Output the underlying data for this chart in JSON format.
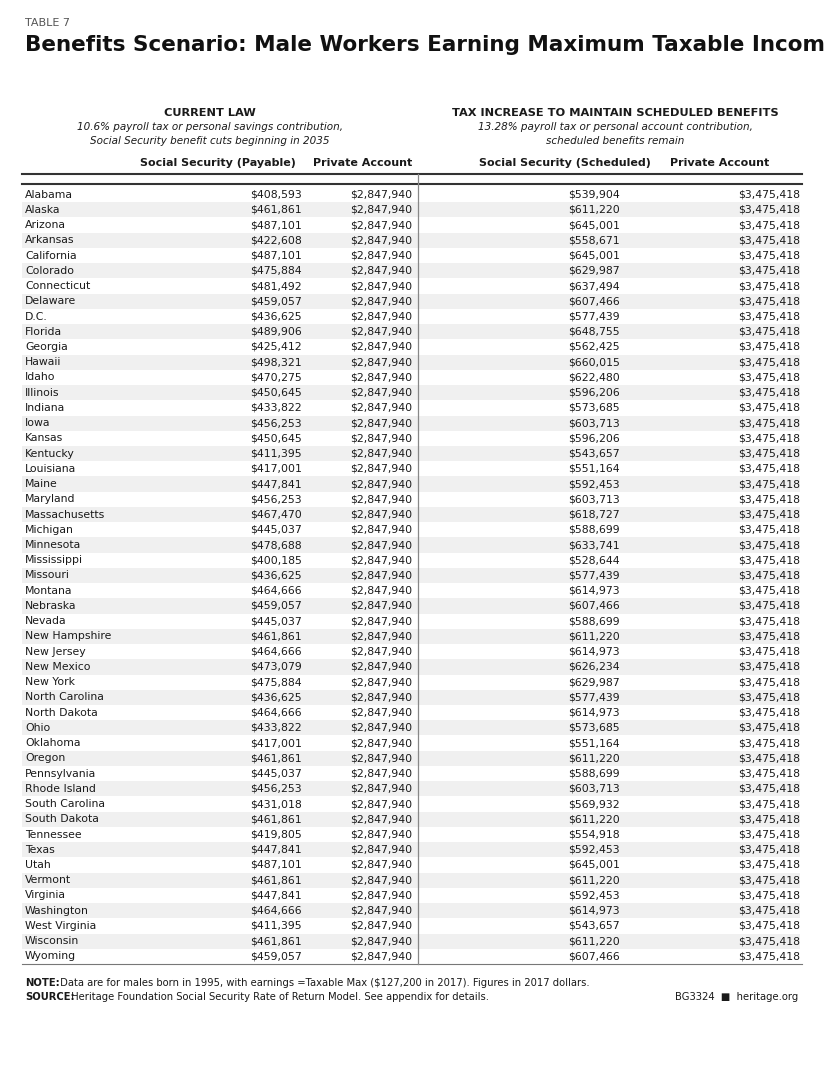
{
  "table_label": "TABLE 7",
  "title": "Benefits Scenario: Male Workers Earning Maximum Taxable Income",
  "section1_header": "CURRENT LAW",
  "section1_subtext": "10.6% payroll tax or personal savings contribution,\nSocial Security benefit cuts beginning in 2035",
  "section2_header": "TAX INCREASE TO MAINTAIN SCHEDULED BENEFITS",
  "section2_subtext": "13.28% payroll tax or personal account contribution,\nscheduled benefits remain",
  "col1_header": "Social Security (Payable)",
  "col2_header": "Private Account",
  "col3_header": "Social Security (Scheduled)",
  "col4_header": "Private Account",
  "note_bold": "NOTE:",
  "note_rest": " Data are for males born in 1995, with earnings =Taxable Max ($127,200 in 2017). Figures in 2017 dollars.",
  "source_bold": "SOURCE:",
  "source_rest": " Heritage Foundation Social Security Rate of Return Model. See appendix for details.",
  "brand": "BG3324  ■  heritage.org",
  "rows": [
    [
      "Alabama",
      "$408,593",
      "$2,847,940",
      "$539,904",
      "$3,475,418"
    ],
    [
      "Alaska",
      "$461,861",
      "$2,847,940",
      "$611,220",
      "$3,475,418"
    ],
    [
      "Arizona",
      "$487,101",
      "$2,847,940",
      "$645,001",
      "$3,475,418"
    ],
    [
      "Arkansas",
      "$422,608",
      "$2,847,940",
      "$558,671",
      "$3,475,418"
    ],
    [
      "California",
      "$487,101",
      "$2,847,940",
      "$645,001",
      "$3,475,418"
    ],
    [
      "Colorado",
      "$475,884",
      "$2,847,940",
      "$629,987",
      "$3,475,418"
    ],
    [
      "Connecticut",
      "$481,492",
      "$2,847,940",
      "$637,494",
      "$3,475,418"
    ],
    [
      "Delaware",
      "$459,057",
      "$2,847,940",
      "$607,466",
      "$3,475,418"
    ],
    [
      "D.C.",
      "$436,625",
      "$2,847,940",
      "$577,439",
      "$3,475,418"
    ],
    [
      "Florida",
      "$489,906",
      "$2,847,940",
      "$648,755",
      "$3,475,418"
    ],
    [
      "Georgia",
      "$425,412",
      "$2,847,940",
      "$562,425",
      "$3,475,418"
    ],
    [
      "Hawaii",
      "$498,321",
      "$2,847,940",
      "$660,015",
      "$3,475,418"
    ],
    [
      "Idaho",
      "$470,275",
      "$2,847,940",
      "$622,480",
      "$3,475,418"
    ],
    [
      "Illinois",
      "$450,645",
      "$2,847,940",
      "$596,206",
      "$3,475,418"
    ],
    [
      "Indiana",
      "$433,822",
      "$2,847,940",
      "$573,685",
      "$3,475,418"
    ],
    [
      "Iowa",
      "$456,253",
      "$2,847,940",
      "$603,713",
      "$3,475,418"
    ],
    [
      "Kansas",
      "$450,645",
      "$2,847,940",
      "$596,206",
      "$3,475,418"
    ],
    [
      "Kentucky",
      "$411,395",
      "$2,847,940",
      "$543,657",
      "$3,475,418"
    ],
    [
      "Louisiana",
      "$417,001",
      "$2,847,940",
      "$551,164",
      "$3,475,418"
    ],
    [
      "Maine",
      "$447,841",
      "$2,847,940",
      "$592,453",
      "$3,475,418"
    ],
    [
      "Maryland",
      "$456,253",
      "$2,847,940",
      "$603,713",
      "$3,475,418"
    ],
    [
      "Massachusetts",
      "$467,470",
      "$2,847,940",
      "$618,727",
      "$3,475,418"
    ],
    [
      "Michigan",
      "$445,037",
      "$2,847,940",
      "$588,699",
      "$3,475,418"
    ],
    [
      "Minnesota",
      "$478,688",
      "$2,847,940",
      "$633,741",
      "$3,475,418"
    ],
    [
      "Mississippi",
      "$400,185",
      "$2,847,940",
      "$528,644",
      "$3,475,418"
    ],
    [
      "Missouri",
      "$436,625",
      "$2,847,940",
      "$577,439",
      "$3,475,418"
    ],
    [
      "Montana",
      "$464,666",
      "$2,847,940",
      "$614,973",
      "$3,475,418"
    ],
    [
      "Nebraska",
      "$459,057",
      "$2,847,940",
      "$607,466",
      "$3,475,418"
    ],
    [
      "Nevada",
      "$445,037",
      "$2,847,940",
      "$588,699",
      "$3,475,418"
    ],
    [
      "New Hampshire",
      "$461,861",
      "$2,847,940",
      "$611,220",
      "$3,475,418"
    ],
    [
      "New Jersey",
      "$464,666",
      "$2,847,940",
      "$614,973",
      "$3,475,418"
    ],
    [
      "New Mexico",
      "$473,079",
      "$2,847,940",
      "$626,234",
      "$3,475,418"
    ],
    [
      "New York",
      "$475,884",
      "$2,847,940",
      "$629,987",
      "$3,475,418"
    ],
    [
      "North Carolina",
      "$436,625",
      "$2,847,940",
      "$577,439",
      "$3,475,418"
    ],
    [
      "North Dakota",
      "$464,666",
      "$2,847,940",
      "$614,973",
      "$3,475,418"
    ],
    [
      "Ohio",
      "$433,822",
      "$2,847,940",
      "$573,685",
      "$3,475,418"
    ],
    [
      "Oklahoma",
      "$417,001",
      "$2,847,940",
      "$551,164",
      "$3,475,418"
    ],
    [
      "Oregon",
      "$461,861",
      "$2,847,940",
      "$611,220",
      "$3,475,418"
    ],
    [
      "Pennsylvania",
      "$445,037",
      "$2,847,940",
      "$588,699",
      "$3,475,418"
    ],
    [
      "Rhode Island",
      "$456,253",
      "$2,847,940",
      "$603,713",
      "$3,475,418"
    ],
    [
      "South Carolina",
      "$431,018",
      "$2,847,940",
      "$569,932",
      "$3,475,418"
    ],
    [
      "South Dakota",
      "$461,861",
      "$2,847,940",
      "$611,220",
      "$3,475,418"
    ],
    [
      "Tennessee",
      "$419,805",
      "$2,847,940",
      "$554,918",
      "$3,475,418"
    ],
    [
      "Texas",
      "$447,841",
      "$2,847,940",
      "$592,453",
      "$3,475,418"
    ],
    [
      "Utah",
      "$487,101",
      "$2,847,940",
      "$645,001",
      "$3,475,418"
    ],
    [
      "Vermont",
      "$461,861",
      "$2,847,940",
      "$611,220",
      "$3,475,418"
    ],
    [
      "Virginia",
      "$447,841",
      "$2,847,940",
      "$592,453",
      "$3,475,418"
    ],
    [
      "Washington",
      "$464,666",
      "$2,847,940",
      "$614,973",
      "$3,475,418"
    ],
    [
      "West Virginia",
      "$411,395",
      "$2,847,940",
      "$543,657",
      "$3,475,418"
    ],
    [
      "Wisconsin",
      "$461,861",
      "$2,847,940",
      "$611,220",
      "$3,475,418"
    ],
    [
      "Wyoming",
      "$459,057",
      "$2,847,940",
      "$607,466",
      "$3,475,418"
    ]
  ],
  "bg_color": "#ffffff",
  "stripe_color": "#f0f0f0",
  "text_color": "#1a1a1a",
  "line_color": "#555555"
}
